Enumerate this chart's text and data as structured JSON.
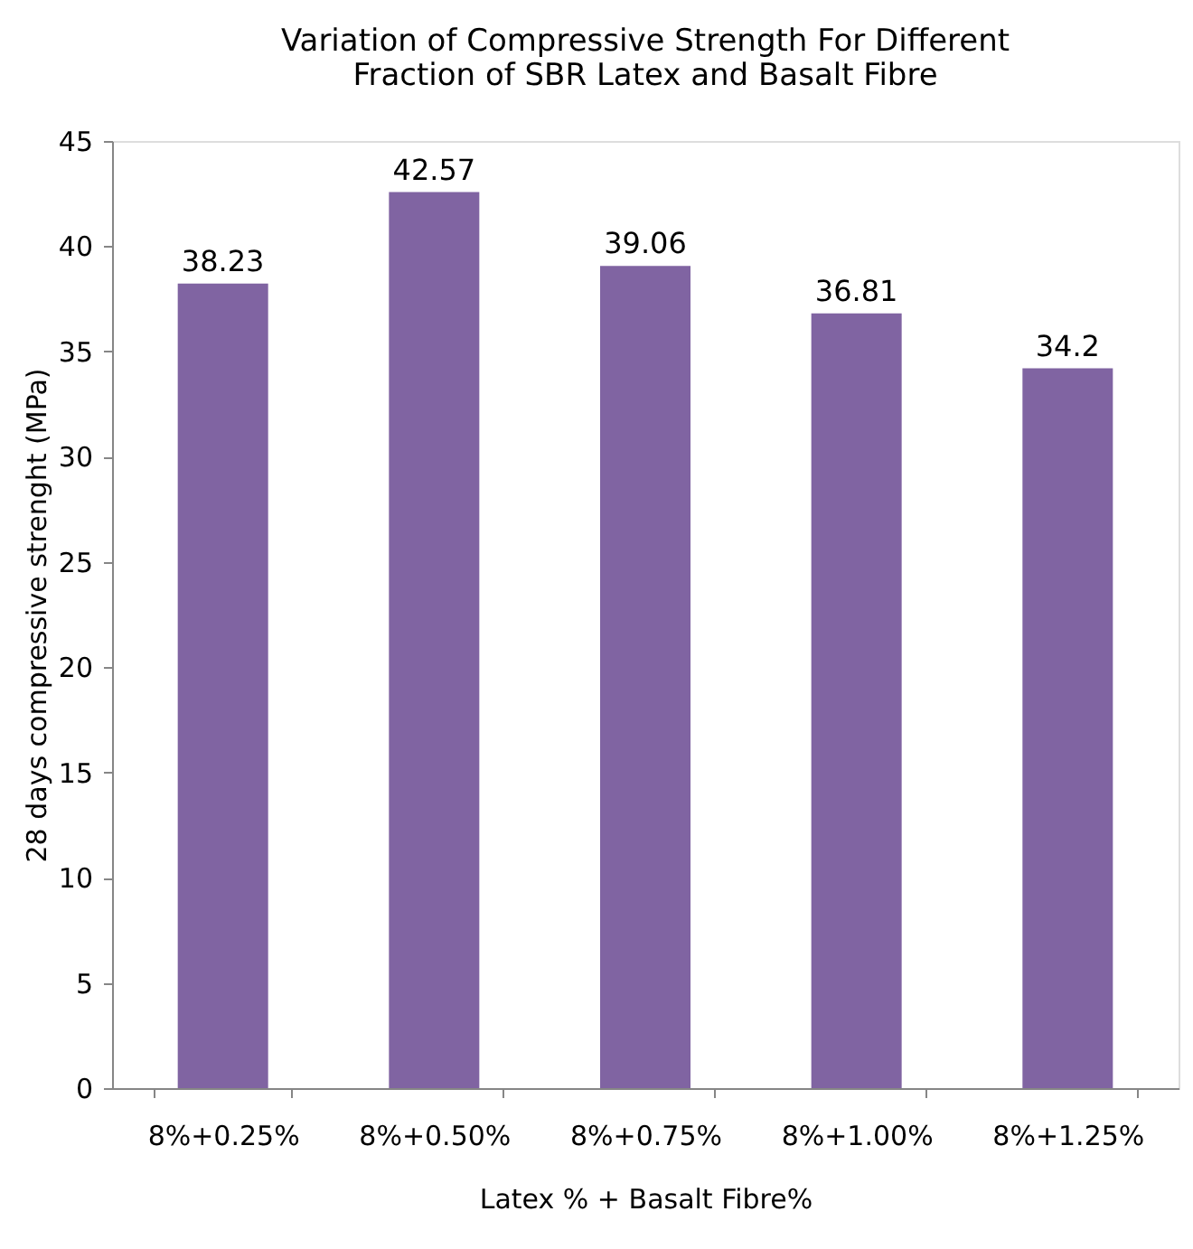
{
  "chart_data": {
    "type": "bar",
    "title": "Variation of Compressive Strength For Different\nFraction of SBR Latex and Basalt Fibre",
    "xlabel": "Latex % + Basalt Fibre%",
    "ylabel": "28 days compressive strenght (MPa)",
    "categories": [
      "8%+0.25%",
      "8%+0.50%",
      "8%+0.75%",
      "8%+1.00%",
      "8%+1.25%"
    ],
    "values": [
      38.23,
      42.57,
      39.06,
      36.81,
      34.2
    ],
    "color": "#8064a2",
    "ylim": [
      0,
      45
    ],
    "yticks": [
      0,
      5,
      10,
      15,
      20,
      25,
      30,
      35,
      40,
      45
    ],
    "data_labels": true,
    "grid": false
  }
}
